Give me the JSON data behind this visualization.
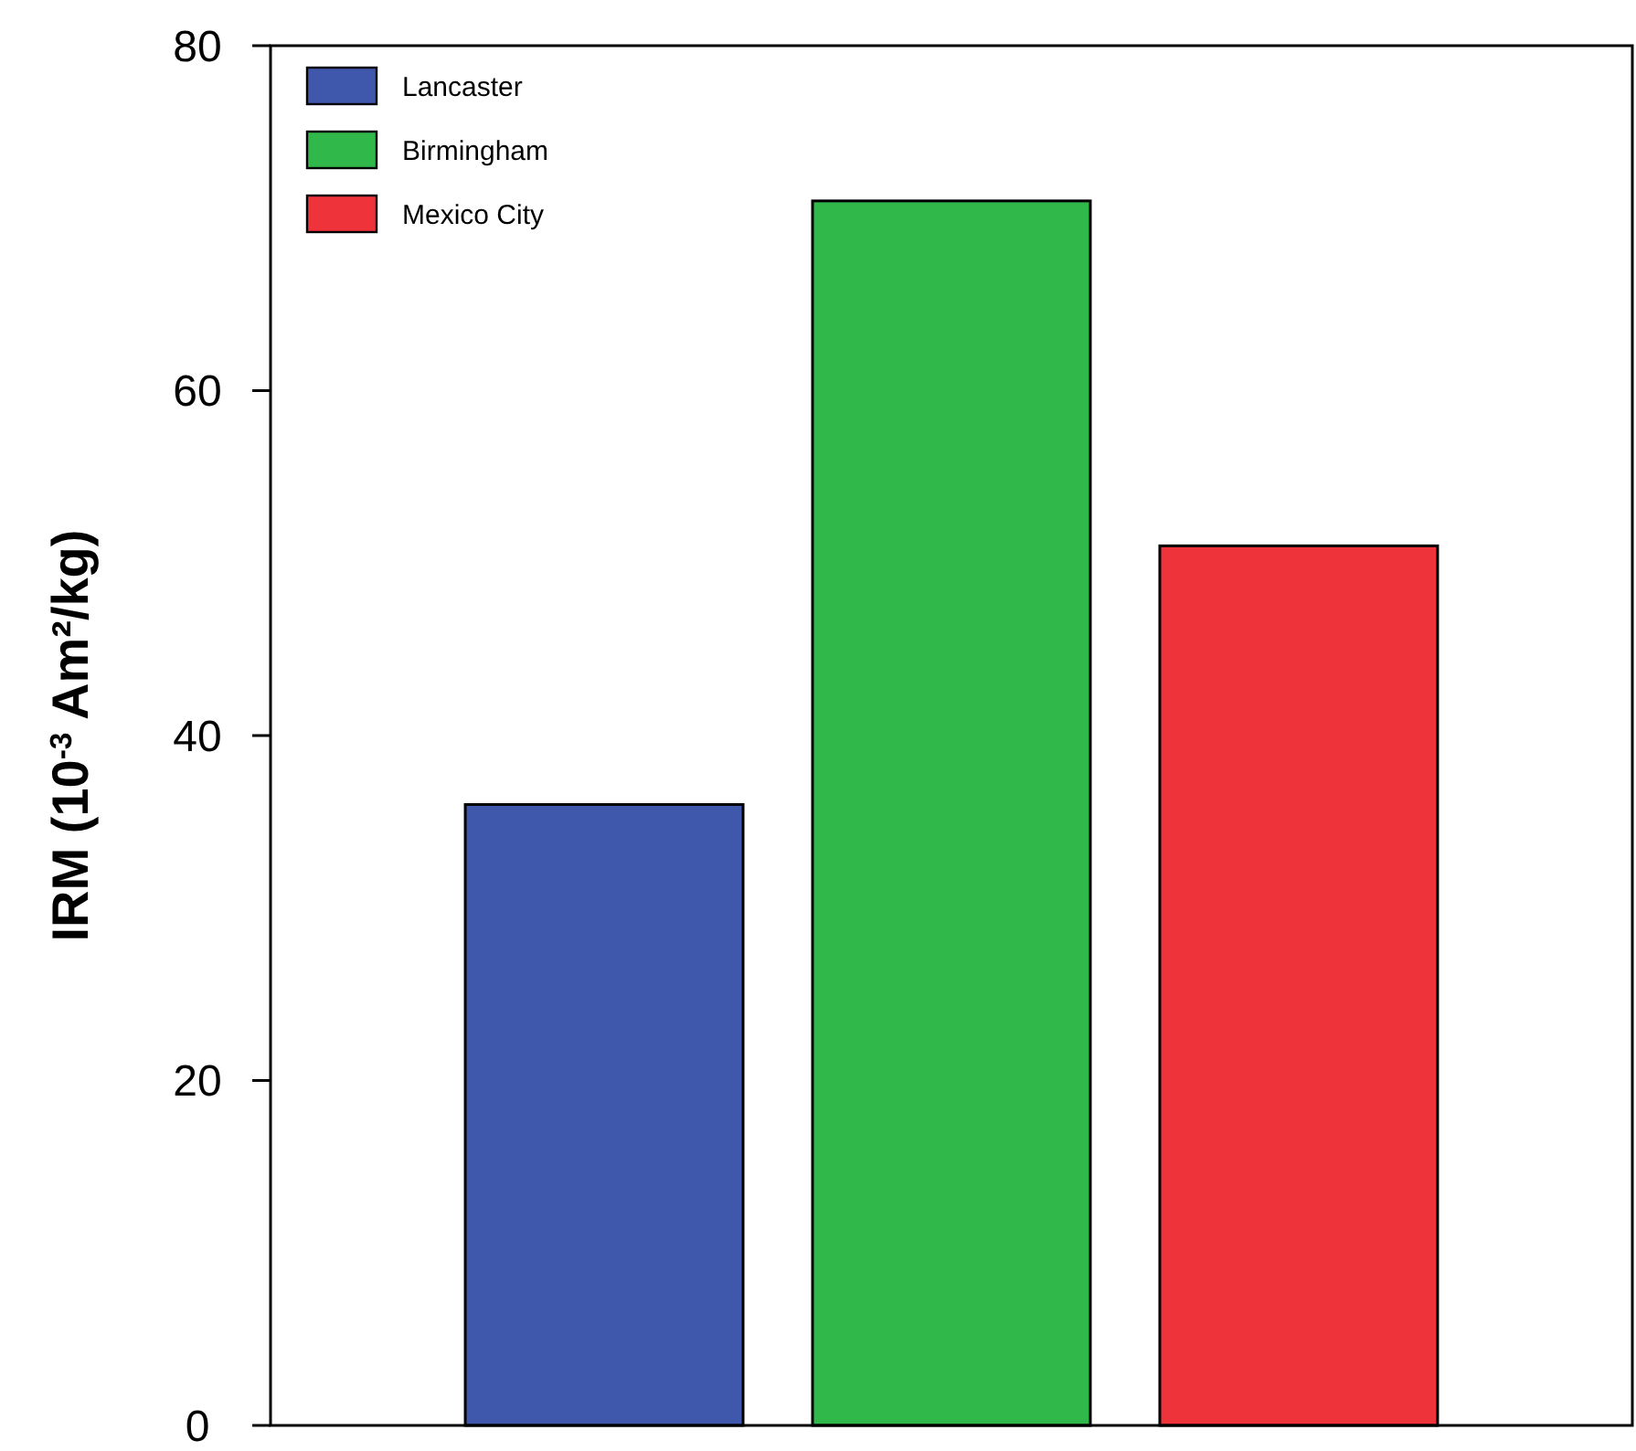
{
  "chart_data": {
    "type": "bar",
    "ylabel": "IRM (10$^{-3}$ Am²/kg)",
    "categories": [
      null
    ],
    "series": [
      {
        "name": "Lancaster",
        "color": "#3f58ac",
        "values": [
          36
        ]
      },
      {
        "name": "Birmingham",
        "color": "#30b84a",
        "values": [
          71
        ]
      },
      {
        "name": "Mexico City",
        "color": "#ef333b",
        "values": [
          51
        ]
      }
    ],
    "ylim": [
      0,
      80
    ],
    "yticks": [
      0,
      20,
      40,
      60,
      80
    ],
    "grid": false,
    "legend": "top left"
  }
}
